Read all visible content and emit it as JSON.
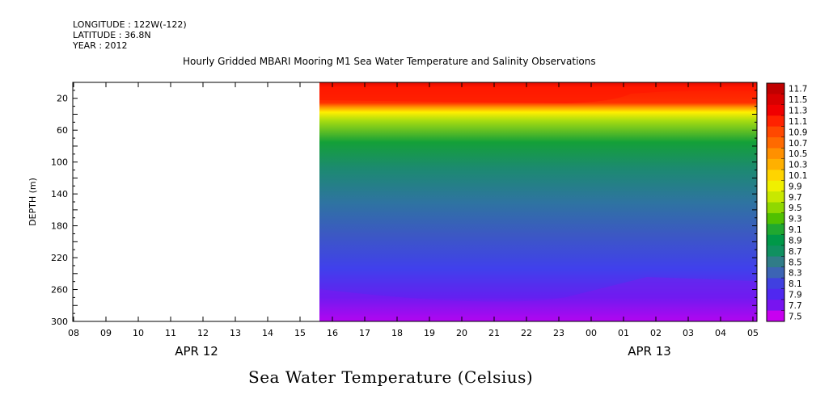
{
  "header": {
    "longitude": "LONGITUDE : 122W(-122)",
    "latitude": "LATITUDE : 36.8N",
    "year": "YEAR : 2012"
  },
  "chart_data": {
    "type": "heatmap",
    "title": "Hourly Gridded MBARI Mooring M1 Sea Water Temperature and Salinity Observations",
    "variable_title": "Sea Water Temperature (Celsius)",
    "ylabel": "DEPTH (m)",
    "y_range": [
      0,
      300
    ],
    "y_reversed": true,
    "y_ticks": [
      20,
      60,
      100,
      140,
      180,
      220,
      260,
      300
    ],
    "x_ticks": [
      "08",
      "09",
      "10",
      "11",
      "12",
      "13",
      "14",
      "15",
      "16",
      "17",
      "18",
      "19",
      "20",
      "21",
      "22",
      "23",
      "00",
      "01",
      "02",
      "03",
      "04",
      "05"
    ],
    "x_date_labels": [
      {
        "label": "APR 12",
        "at_tick": "12"
      },
      {
        "label": "APR 13",
        "at_tick": "02"
      }
    ],
    "data_start_hour_index": 7.6,
    "colorbar": {
      "levels": [
        "11.7",
        "11.5",
        "11.3",
        "11.1",
        "10.9",
        "10.7",
        "10.5",
        "10.3",
        "10.1",
        "9.9",
        "9.7",
        "9.5",
        "9.3",
        "9.1",
        "8.9",
        "8.7",
        "8.5",
        "8.3",
        "8.1",
        "7.9",
        "7.7",
        "7.5"
      ],
      "colors": [
        "#c00000",
        "#d80000",
        "#f00000",
        "#ff2200",
        "#ff4800",
        "#ff6a00",
        "#ff9000",
        "#ffb000",
        "#ffd400",
        "#f0f000",
        "#c8e800",
        "#90d800",
        "#50c000",
        "#20a830",
        "#009848",
        "#109060",
        "#307c88",
        "#3c64b4",
        "#4040e0",
        "#5028f0",
        "#7814f0",
        "#c800f0"
      ]
    },
    "grid": false
  }
}
